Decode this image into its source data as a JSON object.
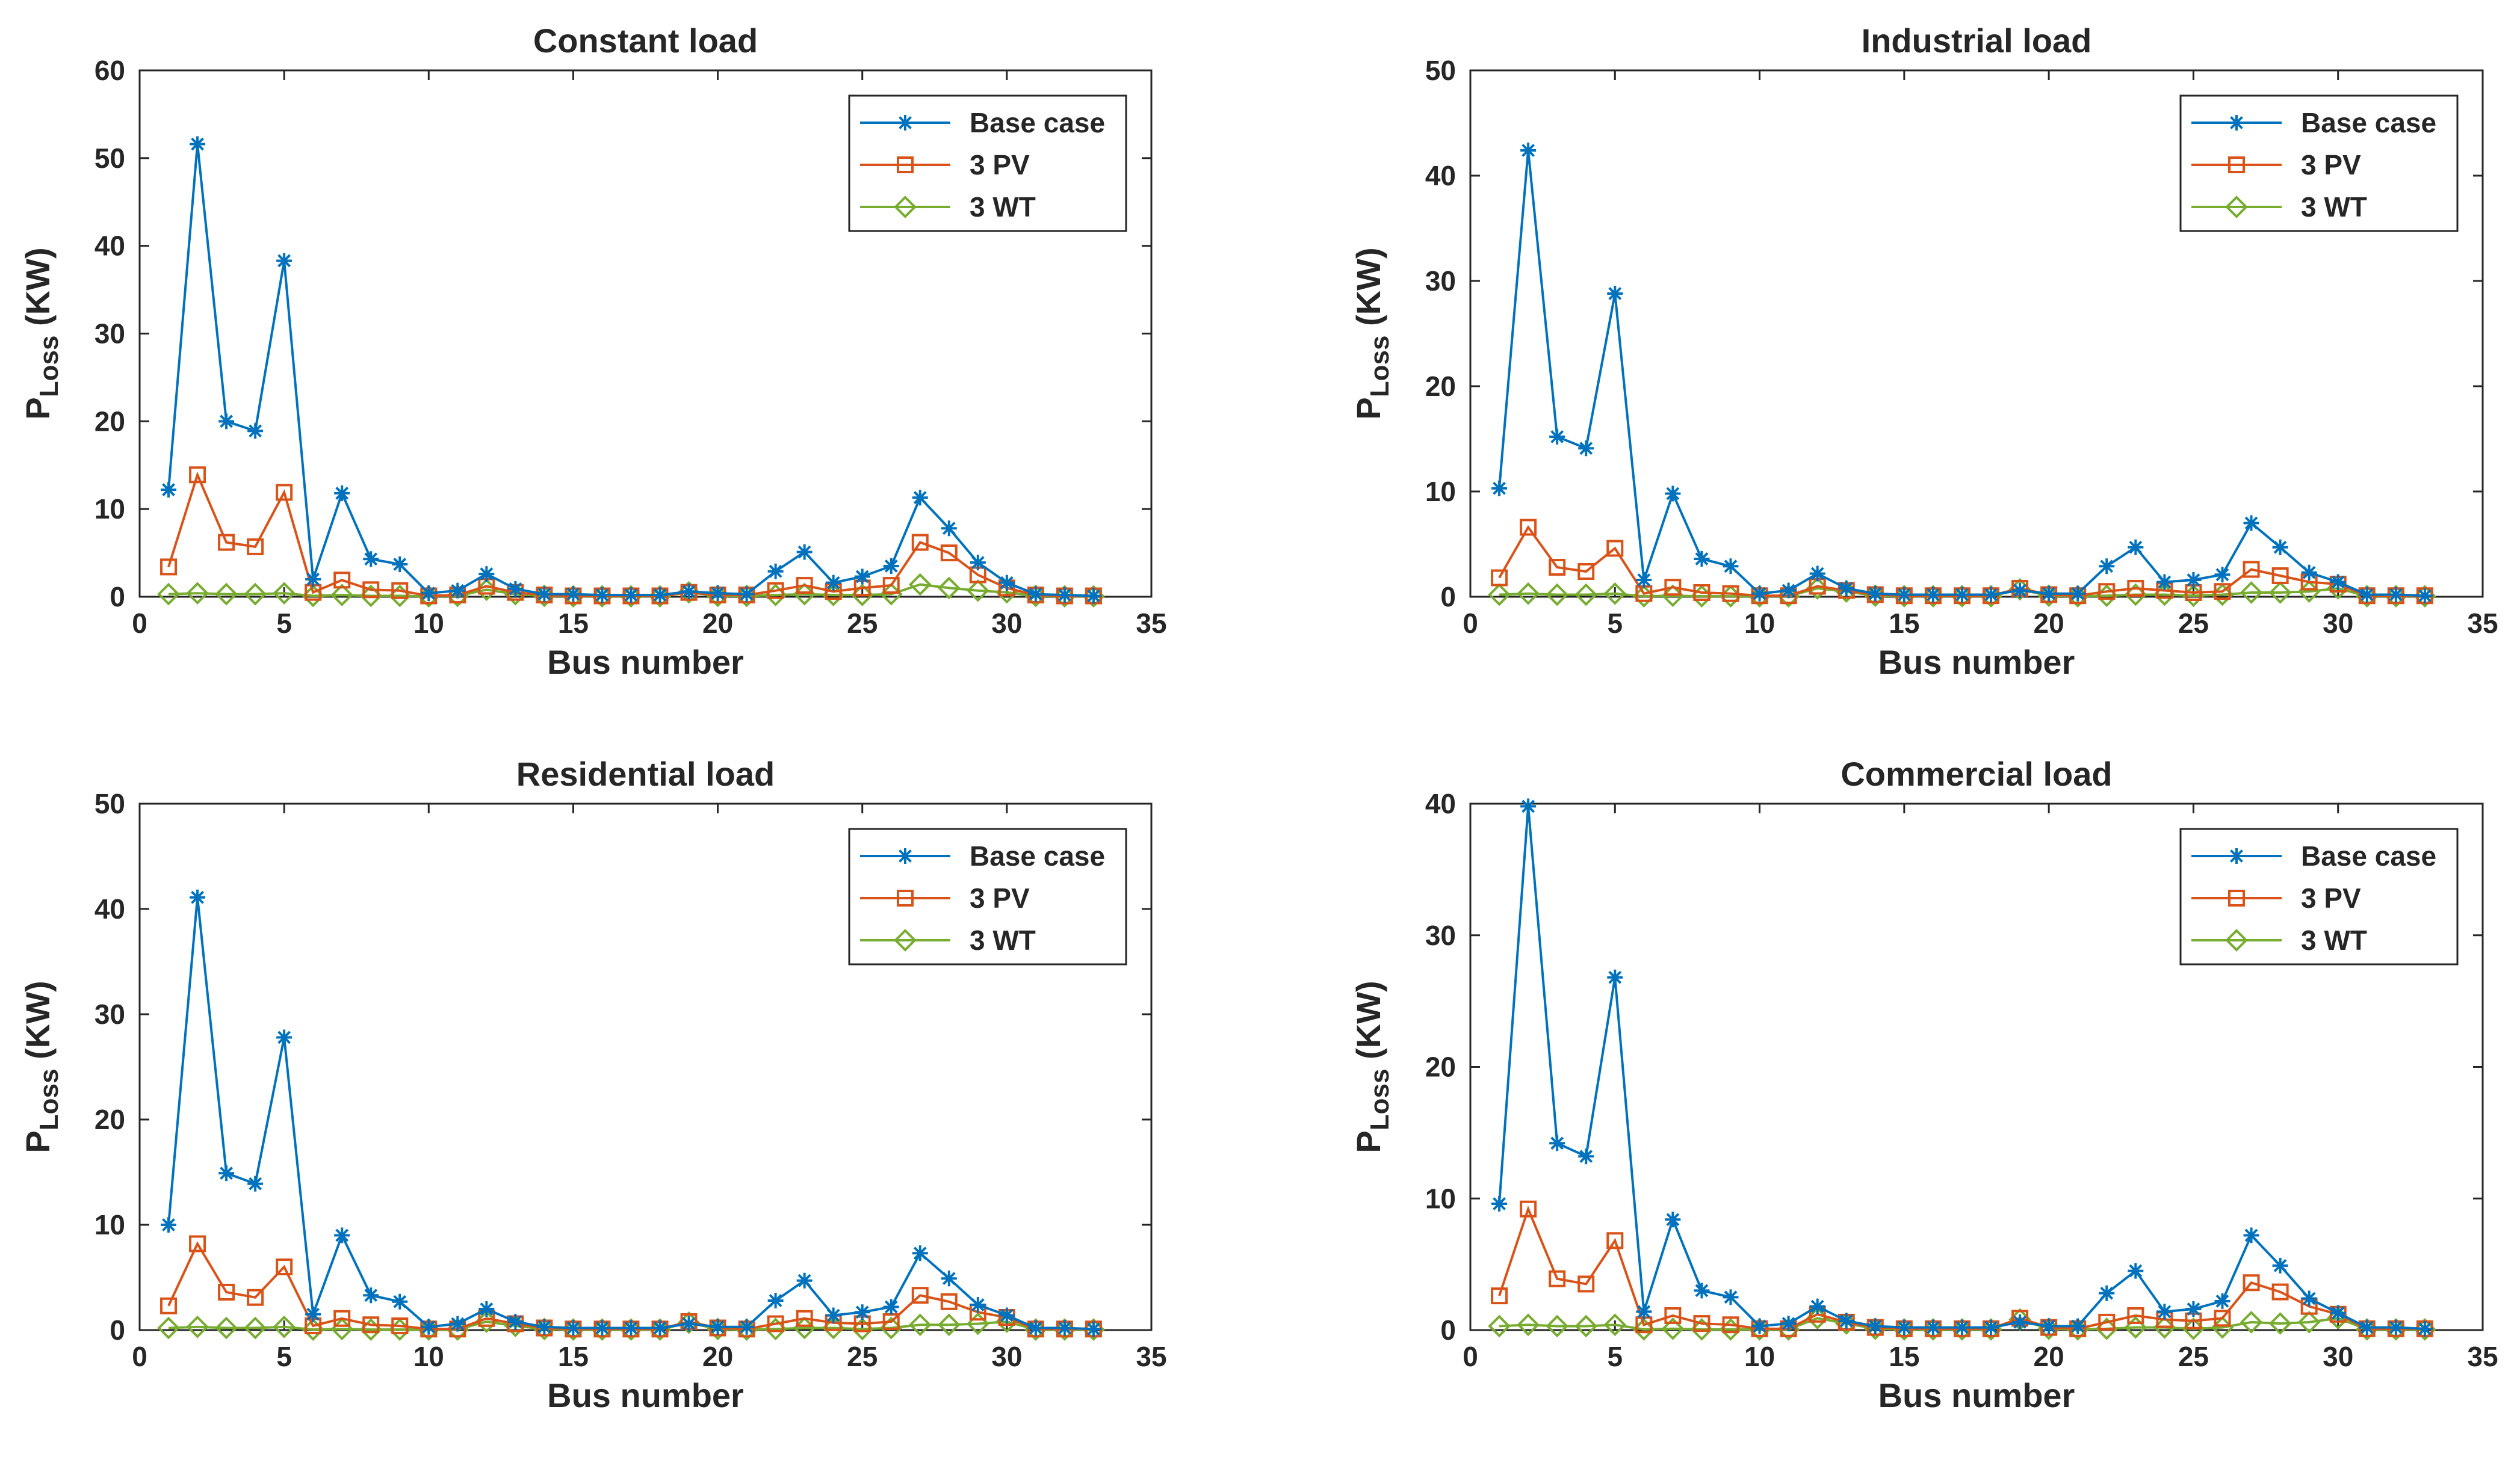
{
  "chart_data": [
    {
      "type": "line",
      "title": "Constant load",
      "xlabel": "Bus number",
      "ylabel_main": "P",
      "ylabel_sub": "Loss",
      "ylabel_unit": " (KW)",
      "xlim": [
        0,
        35
      ],
      "ylim": [
        0,
        60
      ],
      "xticks": [
        0,
        5,
        10,
        15,
        20,
        25,
        30,
        35
      ],
      "yticks": [
        0,
        10,
        20,
        30,
        40,
        50,
        60
      ],
      "x": [
        1,
        2,
        3,
        4,
        5,
        6,
        7,
        8,
        9,
        10,
        11,
        12,
        13,
        14,
        15,
        16,
        17,
        18,
        19,
        20,
        21,
        22,
        23,
        24,
        25,
        26,
        27,
        28,
        29,
        30,
        31,
        32,
        33
      ],
      "legend_position": "top-right",
      "series": [
        {
          "name": "Base case",
          "marker": "star",
          "color": "#0072BD",
          "values": [
            12.2,
            51.6,
            20,
            18.9,
            38.3,
            2,
            11.8,
            4.3,
            3.7,
            0.4,
            0.7,
            2.6,
            0.9,
            0.3,
            0.3,
            0.2,
            0.2,
            0.2,
            0.6,
            0.4,
            0.3,
            2.9,
            5.1,
            1.6,
            2.3,
            3.5,
            11.3,
            7.8,
            3.9,
            1.6,
            0.3,
            0.2,
            0.1
          ]
        },
        {
          "name": "3 PV",
          "marker": "square",
          "color": "#D95319",
          "values": [
            3.4,
            13.9,
            6.2,
            5.7,
            11.9,
            0.5,
            1.9,
            0.8,
            0.7,
            0.1,
            0.2,
            1.2,
            0.5,
            0.2,
            0.1,
            0.1,
            0.1,
            0.1,
            0.5,
            0.2,
            0.2,
            0.7,
            1.3,
            0.6,
            1,
            1.3,
            6.2,
            5,
            2.5,
            1,
            0.2,
            0.1,
            0.1
          ]
        },
        {
          "name": "3 WT",
          "marker": "diamond",
          "color": "#77AC30",
          "values": [
            0.3,
            0.4,
            0.3,
            0.3,
            0.4,
            0.1,
            0.2,
            0.1,
            0.1,
            0.05,
            0.1,
            0.8,
            0.3,
            0.1,
            0.05,
            0.05,
            0.05,
            0.05,
            0.5,
            0.1,
            0.1,
            0.2,
            0.3,
            0.2,
            0.2,
            0.3,
            1.4,
            1,
            0.7,
            0.5,
            0.1,
            0.05,
            0.05
          ]
        }
      ]
    },
    {
      "type": "line",
      "title": "Industrial load",
      "xlabel": "Bus number",
      "ylabel_main": "P",
      "ylabel_sub": "Loss",
      "ylabel_unit": " (KW)",
      "xlim": [
        0,
        35
      ],
      "ylim": [
        0,
        50
      ],
      "xticks": [
        0,
        5,
        10,
        15,
        20,
        25,
        30,
        35
      ],
      "yticks": [
        0,
        10,
        20,
        30,
        40,
        50
      ],
      "x": [
        1,
        2,
        3,
        4,
        5,
        6,
        7,
        8,
        9,
        10,
        11,
        12,
        13,
        14,
        15,
        16,
        17,
        18,
        19,
        20,
        21,
        22,
        23,
        24,
        25,
        26,
        27,
        28,
        29,
        30,
        31,
        32,
        33
      ],
      "legend_position": "top-right",
      "series": [
        {
          "name": "Base case",
          "marker": "star",
          "color": "#0072BD",
          "values": [
            10.3,
            42.4,
            15.2,
            14.1,
            28.8,
            1.6,
            9.8,
            3.6,
            2.9,
            0.3,
            0.6,
            2.2,
            0.8,
            0.3,
            0.2,
            0.2,
            0.2,
            0.2,
            0.6,
            0.3,
            0.3,
            2.9,
            4.7,
            1.4,
            1.6,
            2.1,
            7,
            4.7,
            2.3,
            1.4,
            0.2,
            0.2,
            0.1
          ]
        },
        {
          "name": "3 PV",
          "marker": "square",
          "color": "#D95319",
          "values": [
            1.8,
            6.6,
            2.8,
            2.4,
            4.6,
            0.3,
            0.9,
            0.4,
            0.3,
            0.1,
            0.1,
            1,
            0.6,
            0.2,
            0.1,
            0.1,
            0.1,
            0.1,
            0.8,
            0.2,
            0.1,
            0.5,
            0.8,
            0.6,
            0.4,
            0.5,
            2.6,
            2,
            1.4,
            1.2,
            0.1,
            0.1,
            0.1
          ]
        },
        {
          "name": "3 WT",
          "marker": "diamond",
          "color": "#77AC30",
          "values": [
            0.2,
            0.3,
            0.2,
            0.2,
            0.3,
            0.05,
            0.1,
            0.05,
            0.05,
            0.05,
            0.05,
            0.8,
            0.5,
            0.1,
            0.05,
            0.05,
            0.05,
            0.05,
            0.7,
            0.1,
            0.05,
            0.1,
            0.2,
            0.2,
            0.1,
            0.2,
            0.4,
            0.4,
            0.5,
            0.8,
            0.05,
            0.05,
            0.05
          ]
        }
      ]
    },
    {
      "type": "line",
      "title": "Residential load",
      "xlabel": "Bus number",
      "ylabel_main": "P",
      "ylabel_sub": "Loss",
      "ylabel_unit": " (KW)",
      "xlim": [
        0,
        35
      ],
      "ylim": [
        0,
        50
      ],
      "xticks": [
        0,
        5,
        10,
        15,
        20,
        25,
        30,
        35
      ],
      "yticks": [
        0,
        10,
        20,
        30,
        40,
        50
      ],
      "x": [
        1,
        2,
        3,
        4,
        5,
        6,
        7,
        8,
        9,
        10,
        11,
        12,
        13,
        14,
        15,
        16,
        17,
        18,
        19,
        20,
        21,
        22,
        23,
        24,
        25,
        26,
        27,
        28,
        29,
        30,
        31,
        32,
        33
      ],
      "legend_position": "top-right",
      "series": [
        {
          "name": "Base case",
          "marker": "star",
          "color": "#0072BD",
          "values": [
            10,
            41.1,
            14.9,
            13.9,
            27.8,
            1.5,
            9,
            3.3,
            2.7,
            0.3,
            0.6,
            2,
            0.8,
            0.3,
            0.2,
            0.2,
            0.2,
            0.2,
            0.6,
            0.3,
            0.3,
            2.8,
            4.7,
            1.4,
            1.7,
            2.2,
            7.3,
            4.9,
            2.4,
            1.4,
            0.2,
            0.2,
            0.1
          ]
        },
        {
          "name": "3 PV",
          "marker": "square",
          "color": "#D95319",
          "values": [
            2.3,
            8.2,
            3.6,
            3.1,
            6,
            0.4,
            1.1,
            0.5,
            0.4,
            0.1,
            0.1,
            1.1,
            0.6,
            0.2,
            0.1,
            0.1,
            0.1,
            0.1,
            0.8,
            0.2,
            0.1,
            0.6,
            1.1,
            0.7,
            0.6,
            0.8,
            3.3,
            2.7,
            1.7,
            1.2,
            0.1,
            0.1,
            0.1
          ]
        },
        {
          "name": "3 WT",
          "marker": "diamond",
          "color": "#77AC30",
          "values": [
            0.2,
            0.3,
            0.2,
            0.2,
            0.3,
            0.05,
            0.1,
            0.05,
            0.05,
            0.05,
            0.05,
            0.8,
            0.4,
            0.1,
            0.05,
            0.05,
            0.05,
            0.05,
            0.7,
            0.1,
            0.05,
            0.1,
            0.2,
            0.2,
            0.1,
            0.2,
            0.5,
            0.5,
            0.6,
            0.8,
            0.05,
            0.05,
            0.05
          ]
        }
      ]
    },
    {
      "type": "line",
      "title": "Commercial load",
      "xlabel": "Bus number",
      "ylabel_main": "P",
      "ylabel_sub": "Loss",
      "ylabel_unit": " (KW)",
      "xlim": [
        0,
        35
      ],
      "ylim": [
        0,
        40
      ],
      "xticks": [
        0,
        5,
        10,
        15,
        20,
        25,
        30,
        35
      ],
      "yticks": [
        0,
        10,
        20,
        30,
        40
      ],
      "x": [
        1,
        2,
        3,
        4,
        5,
        6,
        7,
        8,
        9,
        10,
        11,
        12,
        13,
        14,
        15,
        16,
        17,
        18,
        19,
        20,
        21,
        22,
        23,
        24,
        25,
        26,
        27,
        28,
        29,
        30,
        31,
        32,
        33
      ],
      "legend_position": "top-right",
      "series": [
        {
          "name": "Base case",
          "marker": "star",
          "color": "#0072BD",
          "values": [
            9.6,
            39.8,
            14.2,
            13.2,
            26.8,
            1.4,
            8.4,
            3,
            2.5,
            0.3,
            0.5,
            1.8,
            0.7,
            0.3,
            0.2,
            0.2,
            0.2,
            0.2,
            0.6,
            0.3,
            0.3,
            2.8,
            4.5,
            1.4,
            1.6,
            2.2,
            7.2,
            4.9,
            2.4,
            1.3,
            0.2,
            0.2,
            0.1
          ]
        },
        {
          "name": "3 PV",
          "marker": "square",
          "color": "#D95319",
          "values": [
            2.6,
            9.2,
            3.9,
            3.5,
            6.8,
            0.4,
            1.1,
            0.5,
            0.4,
            0.1,
            0.1,
            1.2,
            0.6,
            0.2,
            0.1,
            0.1,
            0.1,
            0.1,
            0.9,
            0.2,
            0.1,
            0.6,
            1.1,
            0.8,
            0.7,
            0.9,
            3.6,
            2.9,
            1.8,
            1.2,
            0.1,
            0.1,
            0.1
          ]
        },
        {
          "name": "3 WT",
          "marker": "diamond",
          "color": "#77AC30",
          "values": [
            0.3,
            0.4,
            0.3,
            0.3,
            0.4,
            0.05,
            0.1,
            0.05,
            0.05,
            0.05,
            0.05,
            0.9,
            0.5,
            0.1,
            0.05,
            0.05,
            0.05,
            0.05,
            0.8,
            0.1,
            0.05,
            0.1,
            0.2,
            0.2,
            0.1,
            0.2,
            0.6,
            0.5,
            0.6,
            0.9,
            0.05,
            0.05,
            0.05
          ]
        }
      ]
    }
  ]
}
